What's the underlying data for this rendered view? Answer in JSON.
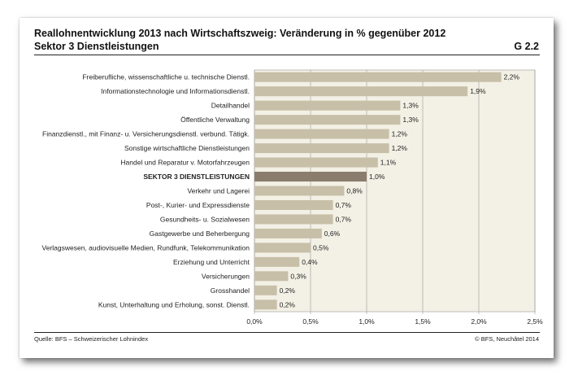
{
  "header": {
    "title": "Reallohnentwicklung 2013 nach Wirtschaftszweig: Veränderung in % gegenüber 2012",
    "subtitle": "Sektor 3 Dienstleistungen",
    "chart_id": "G 2.2"
  },
  "footer": {
    "source": "Quelle: BFS – Schweizerischer Lohnindex",
    "copyright": "© BFS, Neuchâtel 2014"
  },
  "colors": {
    "bar": "#c8bfa8",
    "highlight_bar": "#8a7d6d",
    "plot_background": "#f3f0e5",
    "grid": "#9a9a9a"
  },
  "chart_data": {
    "type": "bar",
    "orientation": "horizontal",
    "xlim": [
      0,
      2.5
    ],
    "ticks": [
      0,
      0.5,
      1.0,
      1.5,
      2.0,
      2.5
    ],
    "tick_labels": [
      "0,0%",
      "0,5%",
      "1,0%",
      "1,5%",
      "2,0%",
      "2,5%"
    ],
    "grid": true,
    "categories": [
      "Freiberufliche, wissenschaftliche u. technische Dienstl.",
      "Informationstechnologie und Informationsdienstl.",
      "Detailhandel",
      "Öffentliche Verwaltung",
      "Finanzdienstl., mit Finanz- u. Versicherungsdienstl. verbund. Tätigk.",
      "Sonstige wirtschaftliche Dienstleistungen",
      "Handel und Reparatur v. Motorfahrzeugen",
      "SEKTOR 3 DIENSTLEISTUNGEN",
      "Verkehr und Lagerei",
      "Post-, Kurier- und Expressdienste",
      "Gesundheits- u. Sozialwesen",
      "Gastgewerbe und Beherbergung",
      "Verlagswesen, audiovisuelle Medien, Rundfunk, Telekommunikation",
      "Erziehung und Unterricht",
      "Versicherungen",
      "Grosshandel",
      "Kunst, Unterhaltung und Erholung, sonst. Dienstl."
    ],
    "values": [
      2.2,
      1.9,
      1.3,
      1.3,
      1.2,
      1.2,
      1.1,
      1.0,
      0.8,
      0.7,
      0.7,
      0.6,
      0.5,
      0.4,
      0.3,
      0.2,
      0.2
    ],
    "value_labels": [
      "2,2%",
      "1,9%",
      "1,3%",
      "1,3%",
      "1,2%",
      "1,2%",
      "1,1%",
      "1,0%",
      "0,8%",
      "0,7%",
      "0,7%",
      "0,6%",
      "0,5%",
      "0,4%",
      "0,3%",
      "0,2%",
      "0,2%"
    ],
    "highlight_index": 7
  }
}
